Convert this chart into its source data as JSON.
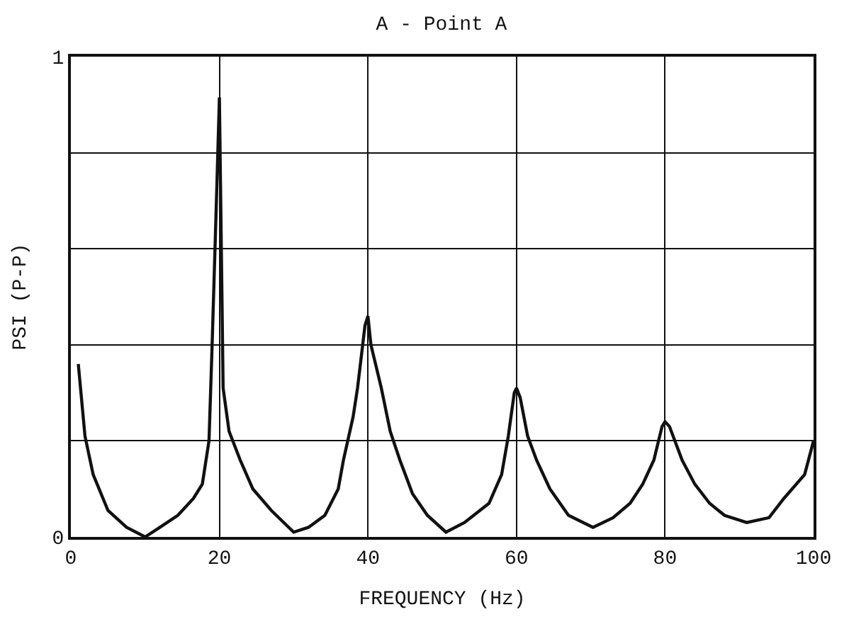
{
  "chart_data": {
    "type": "line",
    "title": "A - Point A",
    "xlabel": "FREQUENCY (Hz)",
    "ylabel": "PSI (P-P)",
    "x": [
      1,
      1.9,
      3,
      5,
      7.5,
      10,
      12,
      14.4,
      16.5,
      17.7,
      18.6,
      19,
      19.6,
      20,
      20.5,
      21.3,
      22.8,
      24.5,
      27,
      30,
      32,
      34.2,
      36,
      36.7,
      38,
      38.6,
      39.6,
      40,
      40.4,
      41.8,
      43,
      44.3,
      46,
      48,
      50.5,
      53,
      56.3,
      58,
      58.9,
      59.7,
      60,
      60.5,
      61.5,
      62.7,
      64.5,
      67,
      70.3,
      73,
      75.3,
      77,
      78.5,
      79.6,
      80,
      80.6,
      82.3,
      84,
      86,
      88,
      91,
      94,
      96,
      98.8,
      100
    ],
    "series": [
      {
        "color": "#111111",
        "values": [
          0.36,
          0.21,
          0.13,
          0.055,
          0.02,
          0,
          0.02,
          0.045,
          0.08,
          0.11,
          0.2,
          0.39,
          0.7,
          0.915,
          0.31,
          0.22,
          0.16,
          0.1,
          0.055,
          0.01,
          0.02,
          0.045,
          0.1,
          0.16,
          0.25,
          0.31,
          0.44,
          0.46,
          0.4,
          0.31,
          0.22,
          0.16,
          0.09,
          0.045,
          0.01,
          0.03,
          0.07,
          0.13,
          0.21,
          0.3,
          0.31,
          0.29,
          0.21,
          0.16,
          0.1,
          0.045,
          0.02,
          0.04,
          0.07,
          0.11,
          0.16,
          0.23,
          0.24,
          0.23,
          0.16,
          0.11,
          0.07,
          0.045,
          0.03,
          0.04,
          0.08,
          0.13,
          0.2
        ]
      }
    ],
    "xlim": [
      0,
      100
    ],
    "xticks": [
      0,
      20,
      40,
      60,
      80,
      100
    ],
    "ylim": [
      0,
      1
    ],
    "yticks": [
      0,
      {
        "value": 0.2,
        "label": null
      },
      {
        "value": 0.4,
        "label": null
      },
      {
        "value": 0.6,
        "label": null
      },
      {
        "value": 0.8,
        "label": null
      },
      1
    ],
    "grid": true,
    "legend": false,
    "marker": "none",
    "line_style": "solid"
  }
}
